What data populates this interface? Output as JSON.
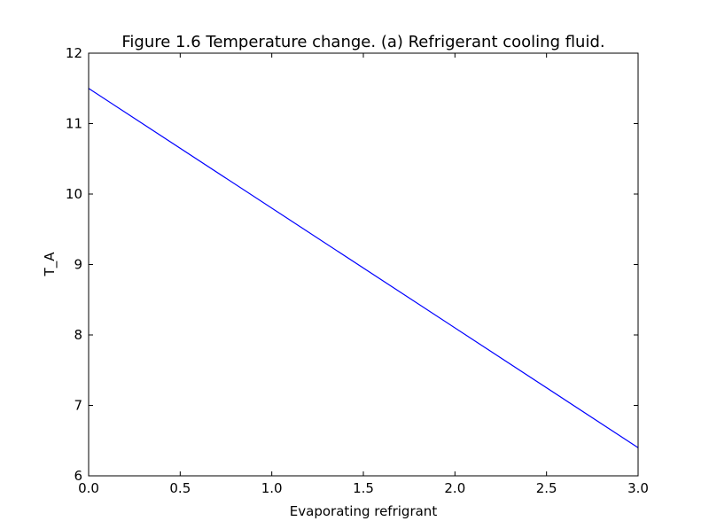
{
  "chart_data": {
    "type": "line",
    "title": "Figure 1.6 Temperature change. (a) Refrigerant cooling fluid.",
    "xlabel": "Evaporating refrigrant",
    "ylabel": "T_A",
    "xlim": [
      0.0,
      3.0
    ],
    "ylim": [
      6,
      12
    ],
    "xticks": [
      "0.0",
      "0.5",
      "1.0",
      "1.5",
      "2.0",
      "2.5",
      "3.0"
    ],
    "yticks": [
      "6",
      "7",
      "8",
      "9",
      "10",
      "11",
      "12"
    ],
    "grid": false,
    "series": [
      {
        "color": "#0000ff",
        "x": [
          0.0,
          3.0
        ],
        "y": [
          11.5,
          6.4
        ]
      }
    ]
  }
}
